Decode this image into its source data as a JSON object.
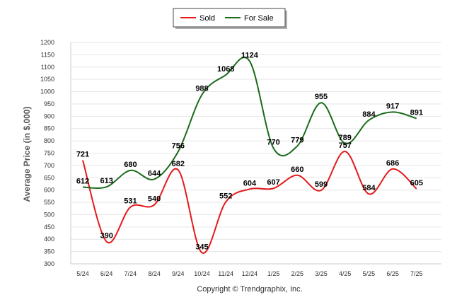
{
  "chart_data": {
    "type": "line",
    "categories": [
      "5/24",
      "6/24",
      "7/24",
      "8/24",
      "9/24",
      "10/24",
      "11/24",
      "12/24",
      "1/25",
      "2/25",
      "3/25",
      "4/25",
      "5/25",
      "6/25",
      "7/25"
    ],
    "series": [
      {
        "name": "Sold",
        "color": "#e31a1c",
        "values": [
          721,
          390,
          531,
          540,
          682,
          345,
          552,
          604,
          607,
          660,
          599,
          757,
          584,
          686,
          605
        ]
      },
      {
        "name": "For Sale",
        "color": "#1a6b1a",
        "values": [
          612,
          613,
          680,
          644,
          756,
          988,
          1068,
          1124,
          770,
          779,
          955,
          789,
          884,
          917,
          891
        ]
      }
    ],
    "ylabel": "Average Price (in $,000)",
    "ylim": [
      300,
      1200
    ],
    "ytick_step": 50,
    "grid": true,
    "legend_position": "top-center"
  },
  "footer": {
    "copyright": "Copyright © Trendgraphix, Inc."
  }
}
